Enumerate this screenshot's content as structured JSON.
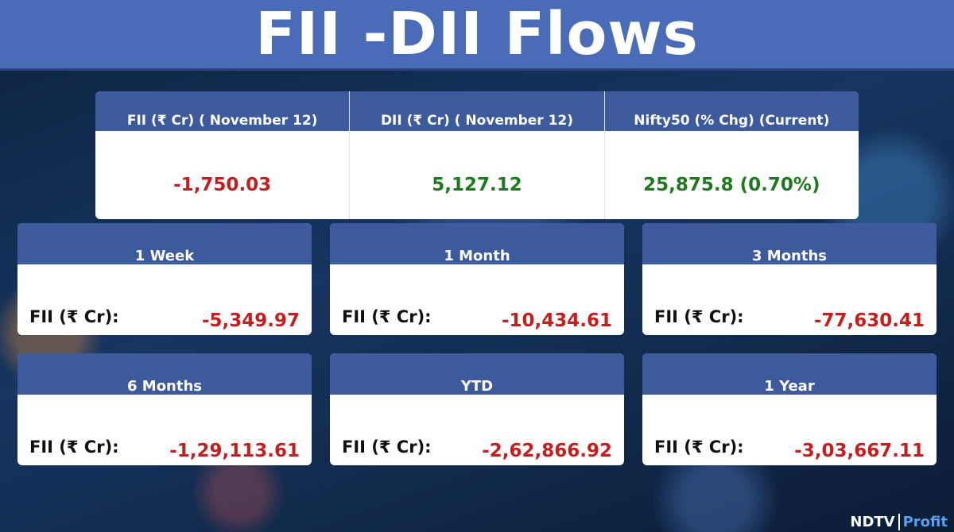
{
  "header": {
    "title": "FII -DII Flows"
  },
  "summary": {
    "columns": [
      {
        "heading": "FII (₹ Cr) ( November 12)",
        "value": "-1,750.03",
        "tone": "negative"
      },
      {
        "heading": "DII (₹ Cr) ( November 12)",
        "value": "5,127.12",
        "tone": "positive"
      },
      {
        "heading": "Nifty50 (% Chg) (Current)",
        "value": "25,875.8 (0.70%)",
        "tone": "positive"
      }
    ]
  },
  "cards": [
    {
      "period": "1 Week",
      "label": "FII (₹ Cr):",
      "value": "-5,349.97"
    },
    {
      "period": "1 Month",
      "label": "FII (₹ Cr):",
      "value": "-10,434.61"
    },
    {
      "period": "3 Months",
      "label": "FII (₹ Cr):",
      "value": "-77,630.41"
    },
    {
      "period": "6 Months",
      "label": "FII (₹ Cr):",
      "value": "-1,29,113.61"
    },
    {
      "period": "YTD",
      "label": "FII (₹ Cr):",
      "value": "-2,62,866.92"
    },
    {
      "period": "1 Year",
      "label": "FII (₹ Cr):",
      "value": "-3,03,667.11"
    }
  ],
  "logo": {
    "brand": "NDTV",
    "product": "Profit"
  }
}
